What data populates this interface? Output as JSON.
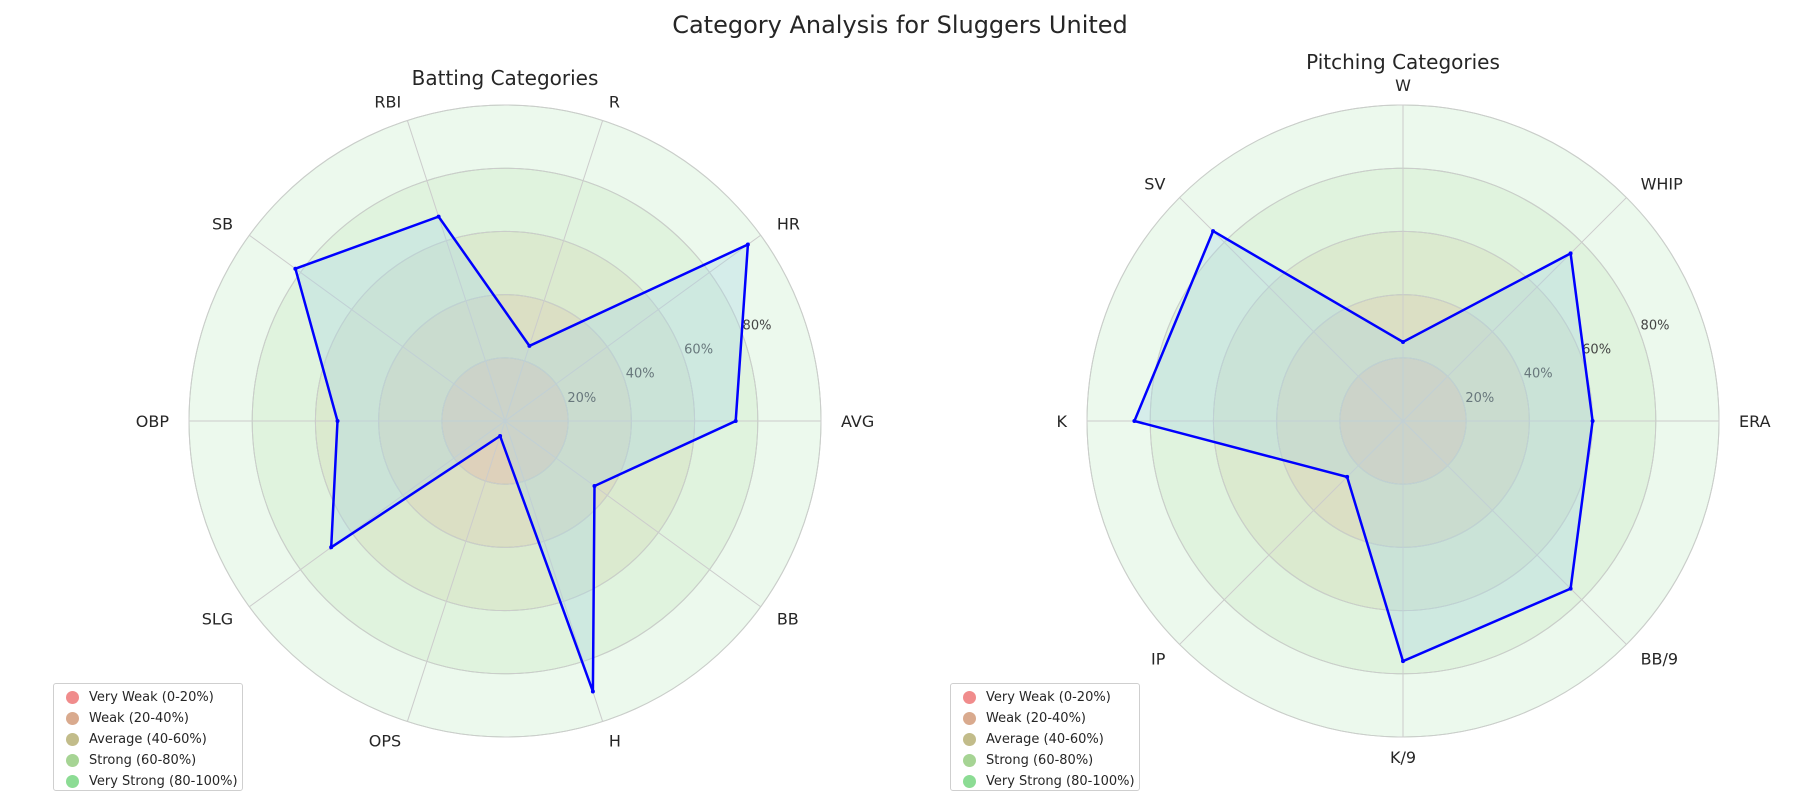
{
  "title": "Category Analysis for Sluggers United",
  "chart_data": [
    {
      "type": "radar",
      "title": "Batting Categories",
      "categories": [
        "AVG",
        "HR",
        "R",
        "RBI",
        "SB",
        "OBP",
        "SLG",
        "OPS",
        "H",
        "BB"
      ],
      "values": [
        73,
        95,
        25,
        68,
        82,
        53,
        68,
        5,
        90,
        35
      ],
      "rlim": [
        0,
        100
      ],
      "r_ticks": [
        "20%",
        "40%",
        "60%",
        "80%"
      ],
      "bands": [
        {
          "label": "Very Weak (0-20%)",
          "color": "#f08c8c"
        },
        {
          "label": "Weak (20-40%)",
          "color": "#d9aa8e"
        },
        {
          "label": "Average (40-60%)",
          "color": "#c2bc8a"
        },
        {
          "label": "Strong (60-80%)",
          "color": "#a6d494"
        },
        {
          "label": "Very Strong (80-100%)",
          "color": "#8cdc94"
        }
      ],
      "line_color": "#0000ff",
      "fill_color": "#add8e6",
      "legend_loc": "lower left"
    },
    {
      "type": "radar",
      "title": "Pitching Categories",
      "categories": [
        "ERA",
        "WHIP",
        "W",
        "SV",
        "K",
        "IP",
        "K/9",
        "BB/9"
      ],
      "values": [
        60,
        75,
        25,
        85,
        85,
        25,
        76,
        75
      ],
      "rlim": [
        0,
        100
      ],
      "r_ticks": [
        "20%",
        "40%",
        "60%",
        "80%"
      ],
      "bands": [
        {
          "label": "Very Weak (0-20%)",
          "color": "#f08c8c"
        },
        {
          "label": "Weak (20-40%)",
          "color": "#d9aa8e"
        },
        {
          "label": "Average (40-60%)",
          "color": "#c2bc8a"
        },
        {
          "label": "Strong (60-80%)",
          "color": "#a6d494"
        },
        {
          "label": "Very Strong (80-100%)",
          "color": "#8cdc94"
        }
      ],
      "line_color": "#0000ff",
      "fill_color": "#add8e6",
      "legend_loc": "lower left"
    }
  ]
}
